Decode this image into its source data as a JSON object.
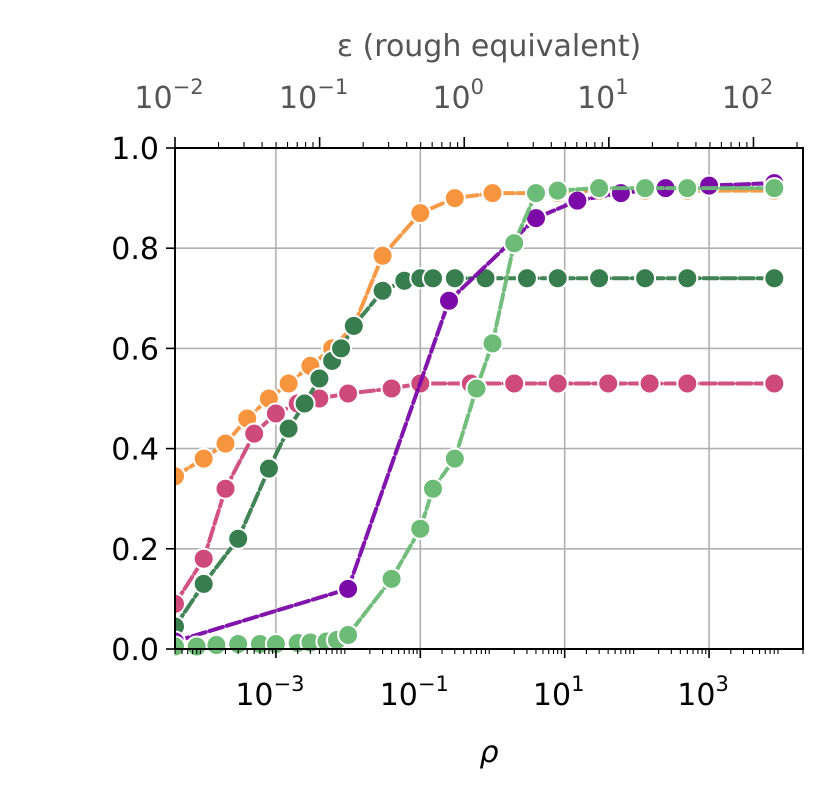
{
  "chart_data": {
    "type": "line",
    "xlabel": "ρ",
    "xscale": "log",
    "xlim": [
      4e-05,
      20000
    ],
    "ylim": [
      0,
      1
    ],
    "grid": true,
    "x_ticks": [
      {
        "exp": -3,
        "label": "10",
        "sup": "−3"
      },
      {
        "exp": -1,
        "label": "10",
        "sup": "−1"
      },
      {
        "exp": 1,
        "label": "10",
        "sup": "1"
      },
      {
        "exp": 3,
        "label": "10",
        "sup": "3"
      }
    ],
    "y_ticks": [
      "0.0",
      "0.2",
      "0.4",
      "0.6",
      "0.8",
      "1.0"
    ],
    "top_axis": {
      "label": "ε (rough equivalent)",
      "lim": [
        0.01,
        220
      ],
      "ticks": [
        {
          "exp": -2,
          "label": "10",
          "sup": "−2"
        },
        {
          "exp": -1,
          "label": "10",
          "sup": "−1"
        },
        {
          "exp": 0,
          "label": "10",
          "sup": "0"
        },
        {
          "exp": 1,
          "label": "10",
          "sup": "1"
        },
        {
          "exp": 2,
          "label": "10",
          "sup": "2"
        }
      ]
    },
    "series": [
      {
        "color": "#f7953e",
        "x": [
          4e-05,
          0.0001,
          0.0002,
          0.0004,
          0.0008,
          0.0015,
          0.003,
          0.006,
          0.012,
          0.03,
          0.1,
          0.3,
          1.0,
          8.0,
          30,
          130,
          500,
          8000
        ],
        "y": [
          0.345,
          0.38,
          0.41,
          0.46,
          0.5,
          0.53,
          0.565,
          0.6,
          0.645,
          0.785,
          0.87,
          0.9,
          0.91,
          0.91,
          0.915,
          0.915,
          0.915,
          0.915
        ]
      },
      {
        "color": "#cd4a7b",
        "x": [
          4e-05,
          0.0001,
          0.0002,
          0.0005,
          0.001,
          0.002,
          0.004,
          0.01,
          0.04,
          0.1,
          0.5,
          2,
          8,
          40,
          150,
          500,
          8000
        ],
        "y": [
          0.09,
          0.18,
          0.32,
          0.43,
          0.47,
          0.49,
          0.5,
          0.51,
          0.52,
          0.53,
          0.53,
          0.53,
          0.53,
          0.53,
          0.53,
          0.53,
          0.53
        ]
      },
      {
        "color": "#377d4d",
        "x": [
          4e-05,
          0.0001,
          0.0003,
          0.0008,
          0.0015,
          0.0025,
          0.004,
          0.006,
          0.008,
          0.012,
          0.03,
          0.06,
          0.1,
          0.15,
          0.3,
          0.8,
          3,
          8,
          30,
          130,
          500,
          8000
        ],
        "y": [
          0.045,
          0.13,
          0.22,
          0.36,
          0.44,
          0.49,
          0.54,
          0.575,
          0.6,
          0.645,
          0.715,
          0.735,
          0.74,
          0.74,
          0.74,
          0.74,
          0.74,
          0.74,
          0.74,
          0.74,
          0.74,
          0.74
        ]
      },
      {
        "color": "#7b0aa8",
        "x": [
          4e-05,
          0.01,
          0.25,
          4,
          15,
          60,
          250,
          1000,
          8000
        ],
        "y": [
          0.015,
          0.12,
          0.695,
          0.86,
          0.895,
          0.91,
          0.92,
          0.925,
          0.93
        ]
      },
      {
        "color": "#6cbb76",
        "x": [
          4e-05,
          8e-05,
          0.00015,
          0.0003,
          0.0006,
          0.001,
          0.002,
          0.003,
          0.005,
          0.007,
          0.01,
          0.04,
          0.1,
          0.15,
          0.3,
          0.6,
          1.0,
          2.0,
          4.0,
          8,
          30,
          130,
          500,
          8000
        ],
        "y": [
          0.005,
          0.005,
          0.008,
          0.01,
          0.01,
          0.01,
          0.012,
          0.013,
          0.015,
          0.018,
          0.028,
          0.14,
          0.24,
          0.32,
          0.38,
          0.52,
          0.61,
          0.81,
          0.91,
          0.915,
          0.92,
          0.92,
          0.92,
          0.92
        ]
      }
    ]
  }
}
